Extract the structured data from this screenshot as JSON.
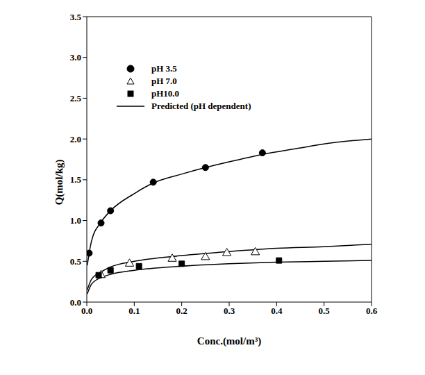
{
  "chart_data": {
    "type": "scatter",
    "x_label": "Conc.(mol/m³)",
    "y_label": "Q(mol/kg)",
    "xlim": [
      0,
      0.6
    ],
    "ylim": [
      0,
      3.5
    ],
    "xticks": [
      {
        "value": 0,
        "label": "0.0"
      },
      0.1,
      0.2,
      0.3,
      0.4,
      0.5,
      0.6
    ],
    "yticks": [
      {
        "value": 0,
        "label": "0.0"
      },
      0.5,
      {
        "value": 1,
        "label": "1.0"
      },
      1.5,
      {
        "value": 2,
        "label": "2.0"
      },
      2.5,
      {
        "value": 3,
        "label": "3.0"
      },
      3.5
    ],
    "legend": "top-left",
    "grid": false,
    "series": [
      {
        "name": "pH 3.5",
        "type": "scatter",
        "marker": "circle",
        "color": "#000000",
        "x": [
          0.005,
          0.03,
          0.05,
          0.14,
          0.25,
          0.37
        ],
        "values": [
          0.6,
          0.97,
          1.12,
          1.47,
          1.65,
          1.83
        ]
      },
      {
        "name": "pH 7.0",
        "type": "scatter",
        "marker": "triangle-open",
        "color": "#000000",
        "x": [
          0.03,
          0.09,
          0.18,
          0.25,
          0.295,
          0.355
        ],
        "values": [
          0.33,
          0.47,
          0.53,
          0.55,
          0.6,
          0.61
        ]
      },
      {
        "name": "pH10.0",
        "type": "scatter",
        "marker": "square",
        "color": "#000000",
        "x": [
          0.025,
          0.05,
          0.11,
          0.2,
          0.405
        ],
        "values": [
          0.33,
          0.39,
          0.44,
          0.47,
          0.51
        ]
      },
      {
        "name": "Predicted (pH dependent)",
        "type": "line",
        "line_style": "solid",
        "color": "#000000",
        "curves": [
          {
            "x": [
              0.001,
              0.01,
              0.03,
              0.05,
              0.1,
              0.14,
              0.2,
              0.25,
              0.3,
              0.37,
              0.45,
              0.5,
              0.6
            ],
            "values": [
              0.45,
              0.75,
              0.98,
              1.12,
              1.33,
              1.46,
              1.57,
              1.65,
              1.72,
              1.81,
              1.89,
              1.94,
              2.0
            ]
          },
          {
            "x": [
              0.001,
              0.01,
              0.03,
              0.05,
              0.1,
              0.2,
              0.3,
              0.4,
              0.5,
              0.6
            ],
            "values": [
              0.15,
              0.28,
              0.37,
              0.43,
              0.5,
              0.57,
              0.62,
              0.66,
              0.68,
              0.71
            ]
          },
          {
            "x": [
              0.001,
              0.01,
              0.03,
              0.05,
              0.1,
              0.2,
              0.3,
              0.4,
              0.5,
              0.6
            ],
            "values": [
              0.1,
              0.22,
              0.3,
              0.34,
              0.39,
              0.44,
              0.47,
              0.49,
              0.5,
              0.51
            ]
          }
        ]
      }
    ]
  }
}
